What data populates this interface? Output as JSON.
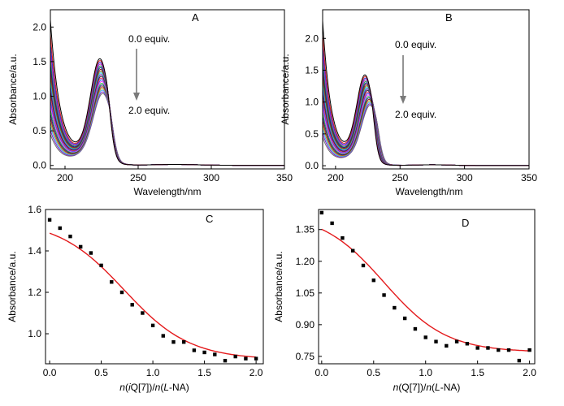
{
  "chart_data": [
    {
      "panel": "A",
      "type": "line",
      "xlabel": "Wavelength/nm",
      "ylabel": "Absorbance/a.u.",
      "xlim": [
        190,
        350
      ],
      "ylim": [
        -0.05,
        2.25
      ],
      "x_ticks": [
        200,
        250,
        300,
        350
      ],
      "y_ticks": [
        0.0,
        0.5,
        1.0,
        1.5,
        2.0
      ],
      "x_tick_labels": [
        "200",
        "250",
        "300",
        "350"
      ],
      "y_tick_labels": [
        "0.0",
        "0.5",
        "1.0",
        "1.5",
        "2.0"
      ],
      "annotations": [
        "0.0 equiv.",
        "2.0 equiv."
      ],
      "peak_start": {
        "x": 224,
        "y": 1.55
      },
      "peak_end": {
        "x": 226,
        "y": 1.06
      },
      "series_count": 21,
      "colors": [
        "#000000",
        "#e41a1c",
        "#1f3fdc",
        "#d018c8",
        "#18a84a",
        "#101a8a",
        "#8a1a2a",
        "#7a6a10",
        "#18c8e0",
        "#6a1ab8",
        "#2c2c2c",
        "#f03060",
        "#3050ff",
        "#ff40ff",
        "#20c040",
        "#202080",
        "#a02020",
        "#a0a020",
        "#40a0ff",
        "#8020c0",
        "#707070"
      ],
      "grid": false
    },
    {
      "panel": "B",
      "type": "line",
      "xlabel": "Wavelength/nm",
      "ylabel": "Absorbance/a.u.",
      "xlim": [
        190,
        350
      ],
      "ylim": [
        -0.05,
        2.45
      ],
      "x_ticks": [
        200,
        250,
        300,
        350
      ],
      "y_ticks": [
        0.0,
        0.5,
        1.0,
        1.5,
        2.0
      ],
      "x_tick_labels": [
        "200",
        "250",
        "300",
        "350"
      ],
      "y_tick_labels": [
        "0.0",
        "0.5",
        "1.0",
        "1.5",
        "2.0"
      ],
      "annotations": [
        "0.0 equiv.",
        "2.0 equiv."
      ],
      "peak_start": {
        "x": 223,
        "y": 1.43
      },
      "peak_end": {
        "x": 227,
        "y": 0.97
      },
      "series_count": 21,
      "colors": [
        "#000000",
        "#e41a1c",
        "#1f3fdc",
        "#d018c8",
        "#18a84a",
        "#101a8a",
        "#8a1a2a",
        "#7a6a10",
        "#18c8e0",
        "#6a1ab8",
        "#2c2c2c",
        "#f03060",
        "#3050ff",
        "#ff40ff",
        "#20c040",
        "#202080",
        "#a02020",
        "#a0a020",
        "#40a0ff",
        "#8020c0",
        "#707070"
      ],
      "grid": false
    },
    {
      "panel": "C",
      "type": "scatter",
      "xlabel_parts": [
        {
          "t": "n",
          "i": true
        },
        {
          "t": "(",
          "i": false
        },
        {
          "t": "i",
          "i": true
        },
        {
          "t": "Q[7])/",
          "i": false
        },
        {
          "t": "n",
          "i": true
        },
        {
          "t": "(",
          "i": false
        },
        {
          "t": "L",
          "i": true
        },
        {
          "t": "-NA)",
          "i": false
        }
      ],
      "ylabel": "Absorbance/a.u.",
      "xlim": [
        -0.04,
        2.07
      ],
      "ylim": [
        0.855,
        1.6
      ],
      "x_ticks": [
        0.0,
        0.5,
        1.0,
        1.5,
        2.0
      ],
      "y_ticks": [
        1.0,
        1.2,
        1.4,
        1.6
      ],
      "x_tick_labels": [
        "0.0",
        "0.5",
        "1.0",
        "1.5",
        "2.0"
      ],
      "y_tick_labels": [
        "1.0",
        "1.2",
        "1.4",
        "1.6"
      ],
      "x": [
        0.0,
        0.1,
        0.2,
        0.3,
        0.4,
        0.5,
        0.6,
        0.7,
        0.8,
        0.9,
        1.0,
        1.1,
        1.2,
        1.3,
        1.4,
        1.5,
        1.6,
        1.7,
        1.8,
        1.9,
        2.0
      ],
      "y": [
        1.55,
        1.51,
        1.47,
        1.42,
        1.39,
        1.33,
        1.25,
        1.2,
        1.14,
        1.1,
        1.04,
        0.99,
        0.96,
        0.96,
        0.92,
        0.91,
        0.9,
        0.87,
        0.89,
        0.88,
        0.88
      ],
      "fit": {
        "top": 1.55,
        "bottom": 0.875,
        "center": 0.72,
        "width": 0.32
      },
      "marker_color": "#000000",
      "fit_color": "#e41a1c",
      "grid": false
    },
    {
      "panel": "D",
      "type": "scatter",
      "xlabel_parts": [
        {
          "t": "n",
          "i": true
        },
        {
          "t": "(Q[7])/",
          "i": false
        },
        {
          "t": "n",
          "i": true
        },
        {
          "t": "(",
          "i": false
        },
        {
          "t": "L",
          "i": true
        },
        {
          "t": "-NA)",
          "i": false
        }
      ],
      "ylabel": "Absorbance/a.u.",
      "xlim": [
        -0.03,
        2.05
      ],
      "ylim": [
        0.715,
        1.445
      ],
      "x_ticks": [
        0.0,
        0.5,
        1.0,
        1.5,
        2.0
      ],
      "y_ticks": [
        0.75,
        0.9,
        1.05,
        1.2,
        1.35
      ],
      "x_tick_labels": [
        "0.0",
        "0.5",
        "1.0",
        "1.5",
        "2.0"
      ],
      "y_tick_labels": [
        "0.75",
        "0.90",
        "1.05",
        "1.20",
        "1.35"
      ],
      "x": [
        0.0,
        0.1,
        0.2,
        0.3,
        0.4,
        0.5,
        0.6,
        0.7,
        0.8,
        0.9,
        1.0,
        1.1,
        1.2,
        1.3,
        1.4,
        1.5,
        1.6,
        1.7,
        1.8,
        1.9,
        2.0
      ],
      "y": [
        1.43,
        1.38,
        1.31,
        1.25,
        1.18,
        1.11,
        1.04,
        0.98,
        0.93,
        0.88,
        0.84,
        0.82,
        0.8,
        0.82,
        0.81,
        0.79,
        0.79,
        0.78,
        0.78,
        0.73,
        0.78
      ],
      "fit": {
        "top": 1.43,
        "bottom": 0.77,
        "center": 0.6,
        "width": 0.3
      },
      "marker_color": "#000000",
      "fit_color": "#e41a1c",
      "grid": false
    }
  ]
}
